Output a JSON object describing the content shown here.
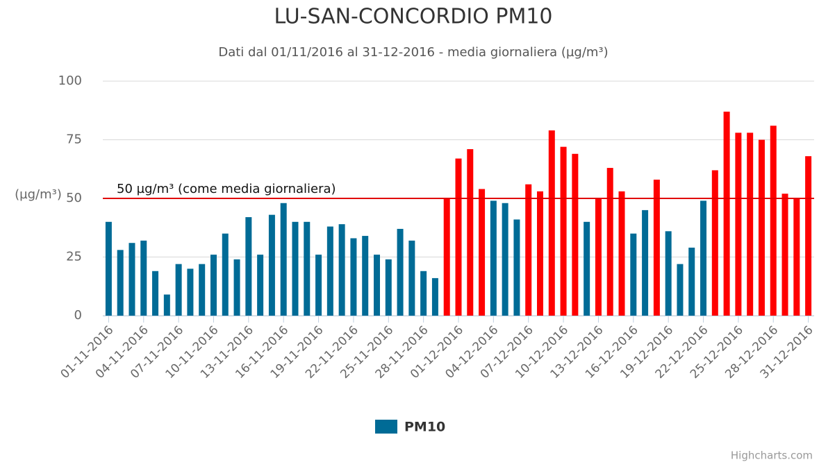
{
  "chart_data": {
    "type": "bar",
    "title": "LU-SAN-CONCORDIO PM10",
    "subtitle": "Dati dal 01/11/2016 al 31-12-2016 - media giornaliera (µg/m³)",
    "y_label": "(µg/m³)",
    "credits": "Highcharts.com",
    "legend_position": "bottom",
    "grid": true,
    "ylim": [
      0,
      100
    ],
    "yticks": [
      0,
      25,
      50,
      75,
      100
    ],
    "plot_line": {
      "value": 50,
      "label": "50 µg/m³ (come media giornaliera)",
      "color": "#e00000"
    },
    "categories": [
      "01-11-2016",
      null,
      null,
      "04-11-2016",
      null,
      null,
      "07-11-2016",
      null,
      null,
      "10-11-2016",
      null,
      null,
      "13-11-2016",
      null,
      null,
      "16-11-2016",
      null,
      null,
      "19-11-2016",
      null,
      null,
      "22-11-2016",
      null,
      null,
      "25-11-2016",
      null,
      null,
      "28-11-2016",
      null,
      null,
      "01-12-2016",
      null,
      null,
      "04-12-2016",
      null,
      null,
      "07-12-2016",
      null,
      null,
      "10-12-2016",
      null,
      null,
      "13-12-2016",
      null,
      null,
      "16-12-2016",
      null,
      null,
      "19-12-2016",
      null,
      null,
      "22-12-2016",
      null,
      null,
      "25-12-2016",
      null,
      null,
      "28-12-2016",
      null,
      null,
      "31-12-2016"
    ],
    "series": [
      {
        "name": "PM10",
        "color": "#006b96",
        "above_color": "#ff0000",
        "values": [
          40,
          28,
          31,
          32,
          19,
          9,
          22,
          20,
          22,
          26,
          35,
          24,
          42,
          26,
          43,
          48,
          40,
          40,
          26,
          38,
          39,
          33,
          34,
          26,
          24,
          37,
          32,
          19,
          16,
          50,
          67,
          71,
          54,
          49,
          48,
          41,
          56,
          53,
          79,
          72,
          69,
          40,
          50,
          63,
          53,
          35,
          45,
          58,
          36,
          22,
          29,
          49,
          62,
          87,
          78,
          78,
          75,
          81,
          52,
          50,
          68
        ]
      }
    ]
  }
}
